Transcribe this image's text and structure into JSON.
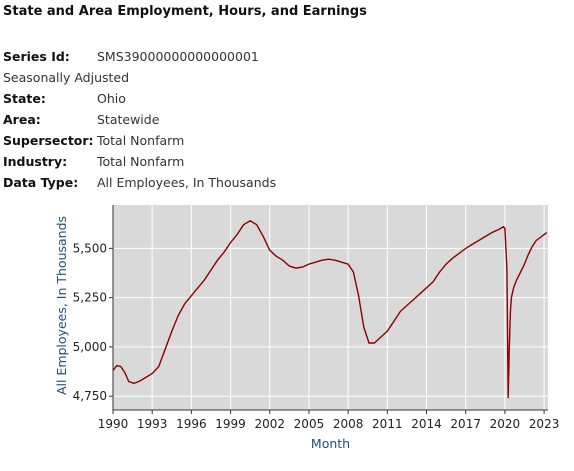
{
  "page_title": "State and Area Employment, Hours, and Earnings",
  "meta": [
    {
      "label": "Series Id:",
      "value": "SMS39000000000000001"
    },
    {
      "label": "",
      "value": "Seasonally Adjusted"
    },
    {
      "label": "State:",
      "value": "Ohio"
    },
    {
      "label": "Area:",
      "value": "Statewide"
    },
    {
      "label": "Supersector:",
      "value": "Total Nonfarm"
    },
    {
      "label": "Industry:",
      "value": "Total Nonfarm"
    },
    {
      "label": "Data Type:",
      "value": "All Employees, In Thousands"
    }
  ],
  "colors": {
    "line": "#8b0000",
    "plot_bg": "#d9d9d9",
    "grid": "#ffffff",
    "axis_label": "#1f4e79"
  },
  "chart_data": {
    "type": "line",
    "title": "",
    "xlabel": "Month",
    "ylabel": "All Employees, In Thousands",
    "xlim": [
      1990,
      2023.3
    ],
    "ylim": [
      4680,
      5720
    ],
    "x_ticks": [
      1990,
      1993,
      1996,
      1999,
      2002,
      2005,
      2008,
      2011,
      2014,
      2017,
      2020,
      2023
    ],
    "x_tick_labels": [
      "1990",
      "1993",
      "1996",
      "1999",
      "2002",
      "2005",
      "2008",
      "2011",
      "2014",
      "2017",
      "2020",
      "2023"
    ],
    "y_ticks": [
      4750,
      5000,
      5250,
      5500
    ],
    "y_tick_labels": [
      "4,750",
      "5,000",
      "5,250",
      "5,500"
    ],
    "grid": true,
    "series": [
      {
        "name": "",
        "x": [
          1990.0,
          1990.3,
          1990.6,
          1990.9,
          1991.2,
          1991.6,
          1992.0,
          1992.5,
          1993.0,
          1993.5,
          1994.0,
          1994.5,
          1995.0,
          1995.5,
          1996.0,
          1996.5,
          1997.0,
          1997.5,
          1998.0,
          1998.5,
          1999.0,
          1999.5,
          2000.0,
          2000.5,
          2001.0,
          2001.5,
          2002.0,
          2002.5,
          2003.0,
          2003.5,
          2004.0,
          2004.5,
          2005.0,
          2005.5,
          2006.0,
          2006.5,
          2007.0,
          2007.5,
          2008.0,
          2008.4,
          2008.8,
          2009.2,
          2009.6,
          2010.0,
          2010.5,
          2011.0,
          2011.5,
          2012.0,
          2012.5,
          2013.0,
          2013.5,
          2014.0,
          2014.5,
          2015.0,
          2015.5,
          2016.0,
          2016.5,
          2017.0,
          2017.5,
          2018.0,
          2018.5,
          2019.0,
          2019.5,
          2019.9,
          2020.0,
          2020.15,
          2020.25,
          2020.33,
          2020.42,
          2020.5,
          2020.67,
          2020.9,
          2021.2,
          2021.5,
          2021.8,
          2022.1,
          2022.4,
          2022.7,
          2023.0,
          2023.2
        ],
        "values": [
          4880,
          4905,
          4900,
          4870,
          4825,
          4815,
          4825,
          4845,
          4865,
          4900,
          4990,
          5080,
          5160,
          5220,
          5260,
          5300,
          5340,
          5390,
          5440,
          5480,
          5530,
          5570,
          5620,
          5640,
          5620,
          5560,
          5490,
          5460,
          5440,
          5410,
          5400,
          5405,
          5420,
          5430,
          5440,
          5445,
          5440,
          5430,
          5420,
          5380,
          5260,
          5100,
          5020,
          5020,
          5050,
          5080,
          5130,
          5180,
          5210,
          5240,
          5270,
          5300,
          5330,
          5380,
          5420,
          5450,
          5475,
          5500,
          5520,
          5540,
          5560,
          5580,
          5595,
          5610,
          5600,
          5400,
          4740,
          4980,
          5180,
          5250,
          5300,
          5340,
          5380,
          5420,
          5470,
          5510,
          5540,
          5555,
          5570,
          5580
        ]
      }
    ]
  }
}
